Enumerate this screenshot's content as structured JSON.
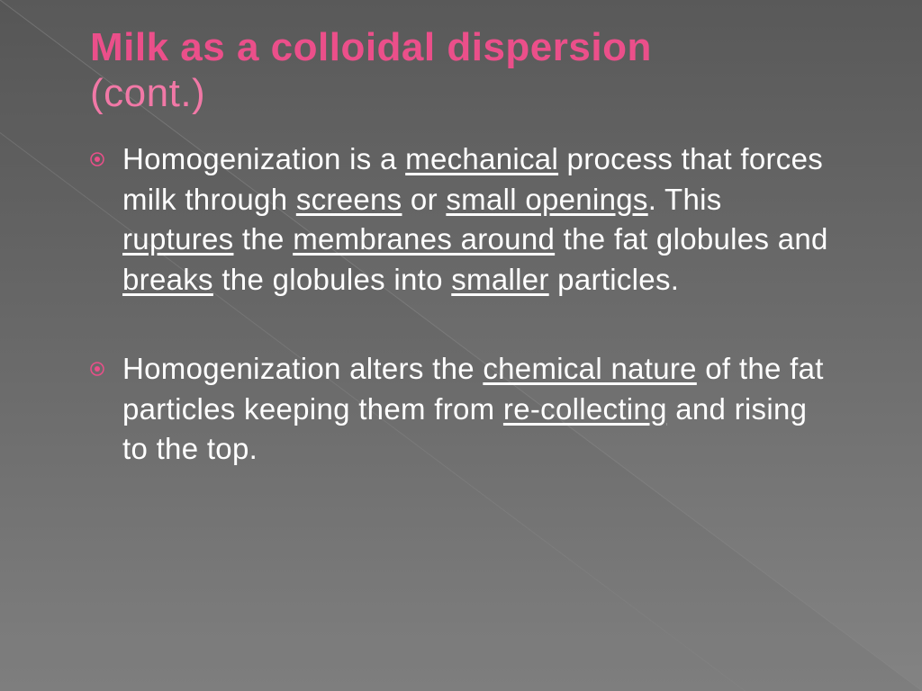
{
  "colors": {
    "bg_top": "#595959",
    "bg_bottom": "#838383",
    "accent": "#eb4f8a",
    "subtitle": "#f178a6",
    "text": "#ffffff",
    "diag_line": "#8a8a8a"
  },
  "title": {
    "main": "Milk as a colloidal dispersion",
    "sub": "(cont.)",
    "fontsize": 44
  },
  "bullets": [
    {
      "segments": [
        {
          "t": "Homogenization is a ",
          "u": false
        },
        {
          "t": "mechanical",
          "u": true
        },
        {
          "t": " process that forces milk through ",
          "u": false
        },
        {
          "t": "screens",
          "u": true
        },
        {
          "t": " or ",
          "u": false
        },
        {
          "t": "small openings",
          "u": true
        },
        {
          "t": ". This ",
          "u": false
        },
        {
          "t": "ruptures",
          "u": true
        },
        {
          "t": " the ",
          "u": false
        },
        {
          "t": "membranes around",
          "u": true
        },
        {
          "t": " the fat globules and ",
          "u": false
        },
        {
          "t": "breaks",
          "u": true
        },
        {
          "t": " the globules into ",
          "u": false
        },
        {
          "t": "smaller",
          "u": true
        },
        {
          "t": " particles.",
          "u": false
        }
      ]
    },
    {
      "segments": [
        {
          "t": "Homogenization alters the ",
          "u": false
        },
        {
          "t": "chemical nature",
          "u": true
        },
        {
          "t": " of the fat particles keeping them from ",
          "u": false
        },
        {
          "t": "re-collecting",
          "u": true
        },
        {
          "t": " and rising to the top.",
          "u": false
        }
      ]
    }
  ],
  "body_fontsize": 33,
  "bullet_icon": {
    "outer_r": 7,
    "inner_r": 3,
    "stroke": 1.5
  }
}
